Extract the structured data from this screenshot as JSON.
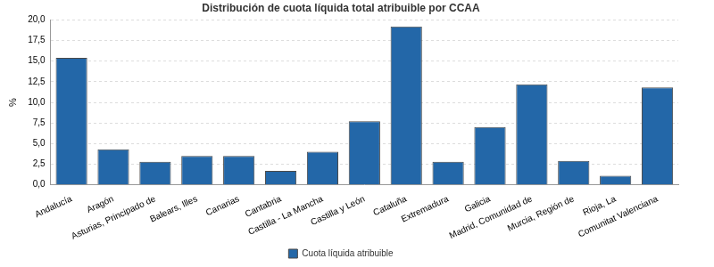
{
  "chart_data": {
    "type": "bar",
    "title": "Distribución de cuota líquida total atribuible por CCAA",
    "ylabel": "%",
    "categories": [
      "Andalucía",
      "Aragón",
      "Asturias, Principado de",
      "Balears, Illes",
      "Canarias",
      "Cantabria",
      "Castilla - La Mancha",
      "Castilla y León",
      "Cataluña",
      "Extremadura",
      "Galicia",
      "Madrid, Comunidad de",
      "Murcia, Región de",
      "Rioja, La",
      "Comunitat Valenciana"
    ],
    "series": [
      {
        "name": "Cuota líquida atribuible",
        "color": "#2367a8",
        "values": [
          15.4,
          4.3,
          2.8,
          3.5,
          3.5,
          1.7,
          4.0,
          7.7,
          19.2,
          2.8,
          7.0,
          12.2,
          2.9,
          1.1,
          11.8
        ]
      }
    ],
    "ylim": [
      0,
      20
    ],
    "yticks": [
      {
        "value": 0,
        "label": "0,0"
      },
      {
        "value": 2.5,
        "label": "2,5"
      },
      {
        "value": 5,
        "label": "5,0"
      },
      {
        "value": 7.5,
        "label": "7,5"
      },
      {
        "value": 10,
        "label": "10,0"
      },
      {
        "value": 12.5,
        "label": "12,5"
      },
      {
        "value": 15,
        "label": "15,0"
      },
      {
        "value": 17.5,
        "label": "17,5"
      },
      {
        "value": 20,
        "label": "20,0"
      }
    ],
    "grid": true,
    "legend": "bottom"
  }
}
